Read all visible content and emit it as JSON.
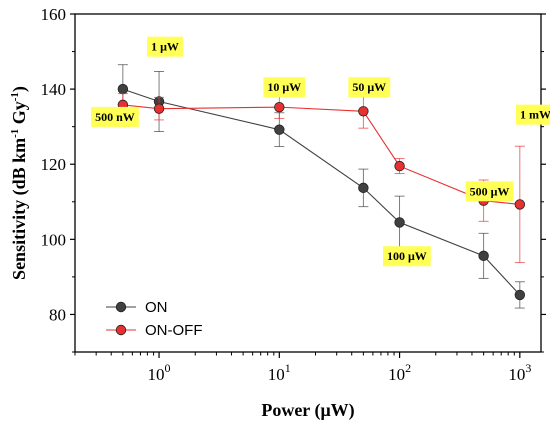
{
  "chart_data": {
    "type": "line",
    "xlabel": "Power (μW)",
    "ylabel": "Sensitivity (dB km-1 Gy-1)",
    "ylabel_parts": {
      "a": "Sensitivity (dB km",
      "b": "-1",
      "c": " Gy",
      "d": "-1",
      "e": ")"
    },
    "x_scale": "log",
    "xlim": [
      0.2,
      1500
    ],
    "ylim": [
      70,
      160
    ],
    "x_ticks": [
      {
        "value": 1,
        "base": "10",
        "exp": "0"
      },
      {
        "value": 10,
        "base": "10",
        "exp": "1"
      },
      {
        "value": 100,
        "base": "10",
        "exp": "2"
      },
      {
        "value": 1000,
        "base": "10",
        "exp": "3"
      }
    ],
    "y_ticks": [
      80,
      100,
      120,
      140,
      160
    ],
    "y_tick_labels": [
      "80",
      "100",
      "120",
      "140",
      "160"
    ],
    "series": [
      {
        "name": "ON",
        "color": "#404040",
        "x": [
          0.5,
          1,
          10,
          50,
          100,
          500,
          1000
        ],
        "y": [
          140.0,
          136.7,
          129.2,
          113.7,
          104.5,
          95.6,
          85.2
        ],
        "err": [
          6.5,
          8.0,
          4.5,
          5.0,
          7.0,
          6.0,
          3.5
        ]
      },
      {
        "name": "ON-OFF",
        "color": "#e83030",
        "x": [
          0.5,
          1,
          10,
          50,
          100,
          500,
          1000
        ],
        "y": [
          135.8,
          134.8,
          135.2,
          134.1,
          119.5,
          110.3,
          109.3
        ],
        "err": [
          3.0,
          3.0,
          3.0,
          4.5,
          2.0,
          5.5,
          15.5
        ]
      }
    ],
    "annotations": [
      {
        "text": "1 μW",
        "x": 1.12,
        "y": 151.3
      },
      {
        "text": "10 μW",
        "x": 11.0,
        "y": 140.5
      },
      {
        "text": "50 μW",
        "x": 56.0,
        "y": 140.5
      },
      {
        "text": "1 mW",
        "x": 1350,
        "y": 133.2
      },
      {
        "text": "500 nW",
        "x": 0.43,
        "y": 132.6
      },
      {
        "text": "500 μW",
        "x": 560,
        "y": 112.8
      },
      {
        "text": "100 μW",
        "x": 115,
        "y": 95.5
      }
    ],
    "annotation_color": "#ffff55",
    "legend_position": "bottom-left",
    "grid": false
  }
}
